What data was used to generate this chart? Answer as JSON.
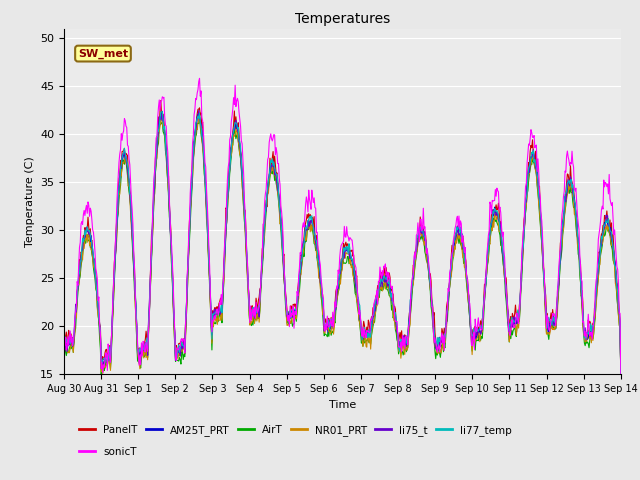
{
  "title": "Temperatures",
  "xlabel": "Time",
  "ylabel": "Temperature (C)",
  "ylim": [
    15,
    51
  ],
  "yticks": [
    15,
    20,
    25,
    30,
    35,
    40,
    45,
    50
  ],
  "plot_bg_color": "#ebebeb",
  "fig_bg_color": "#e8e8e8",
  "series_colors": {
    "PanelT": "#cc0000",
    "AM25T_PRT": "#0000cc",
    "AirT": "#00aa00",
    "NR01_PRT": "#cc8800",
    "li75_t": "#6600cc",
    "li77_temp": "#00bbbb",
    "sonicT": "#ff00ff"
  },
  "legend_series": [
    "PanelT",
    "AM25T_PRT",
    "AirT",
    "NR01_PRT",
    "li75_t",
    "li77_temp",
    "sonicT"
  ],
  "annotation_text": "SW_met",
  "num_days": 15,
  "xtick_labels": [
    "Aug 30",
    "Aug 31",
    "Sep 1",
    "Sep 2",
    "Sep 3",
    "Sep 4",
    "Sep 5",
    "Sep 6",
    "Sep 7",
    "Sep 8",
    "Sep 9",
    "Sep 10",
    "Sep 11",
    "Sep 12",
    "Sep 13",
    "Sep 14"
  ]
}
